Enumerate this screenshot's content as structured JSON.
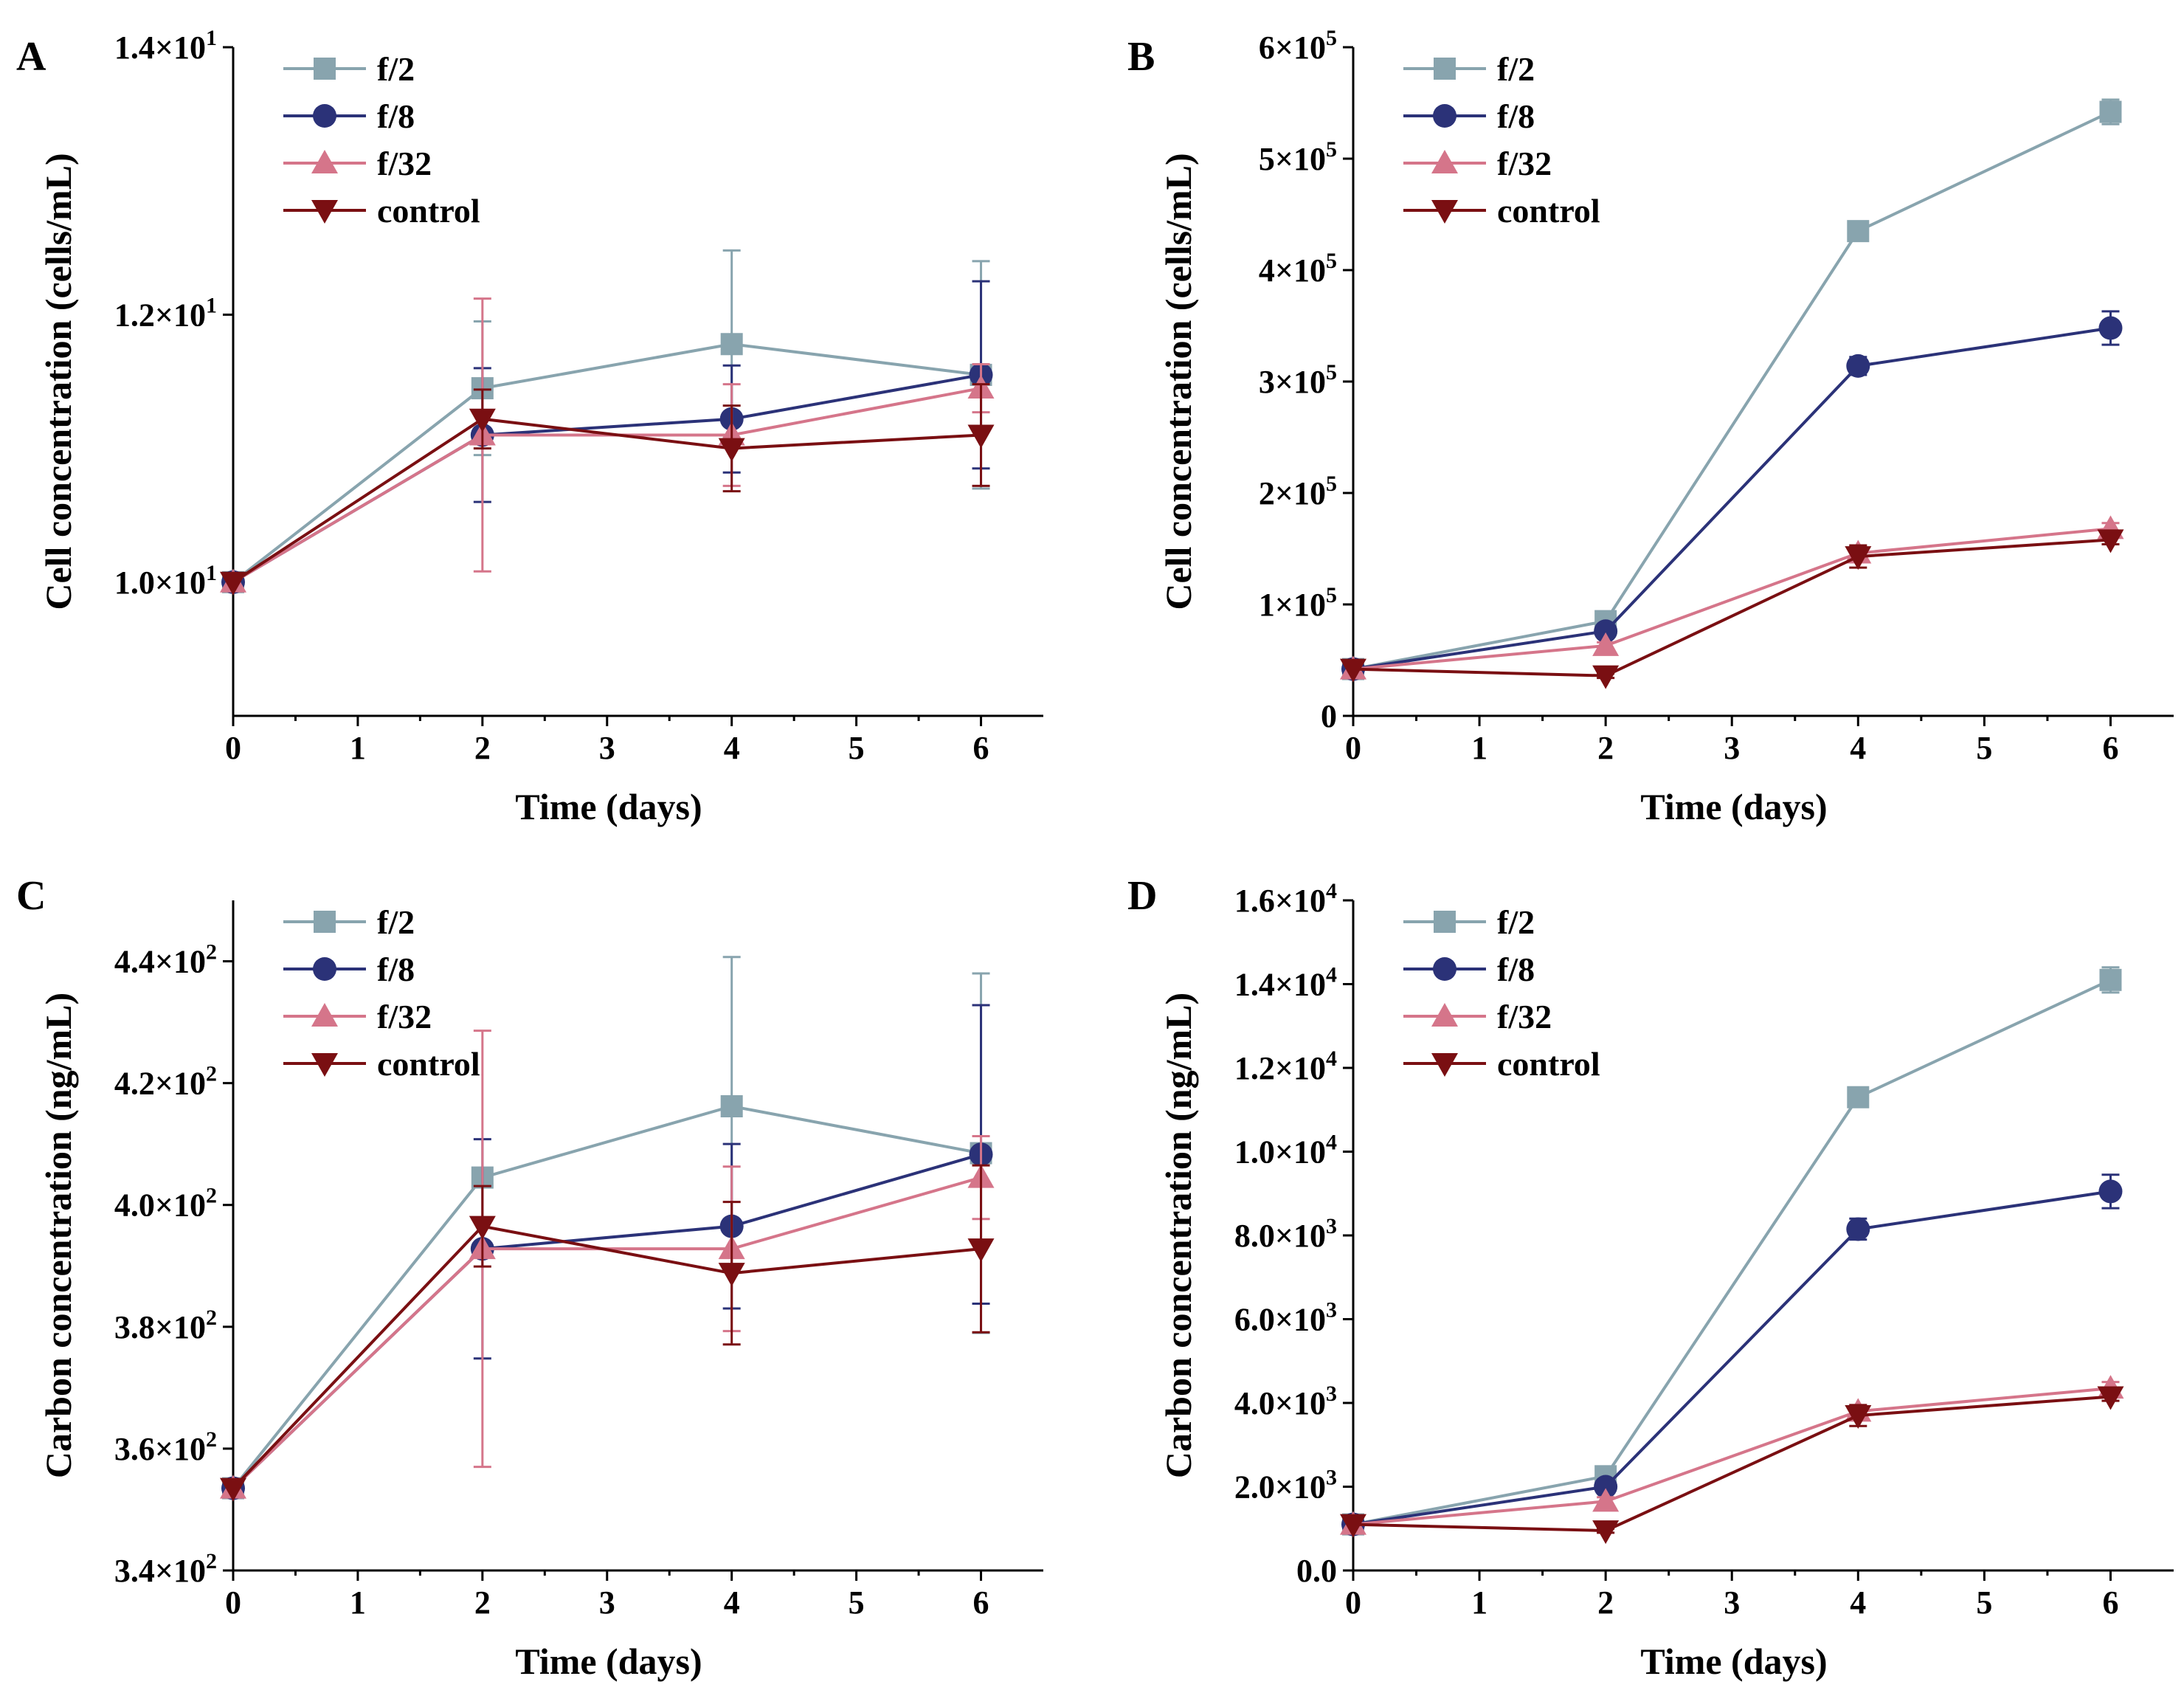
{
  "chart_data": [
    {
      "panel": "A",
      "type": "line",
      "xlabel": "Time (days)",
      "ylabel": "Cell concentration (cells/mL)",
      "xlim": [
        0,
        6.5
      ],
      "ylim": [
        9.0,
        14.0
      ],
      "xticks": [
        0,
        1,
        2,
        3,
        4,
        5,
        6
      ],
      "yticks": [
        {
          "value": 10,
          "mantissa": "1.0×10",
          "exp": "1"
        },
        {
          "value": 12,
          "mantissa": "1.2×10",
          "exp": "1"
        },
        {
          "value": 14,
          "mantissa": "1.4×10",
          "exp": "1"
        }
      ],
      "x": [
        0,
        2,
        4,
        6
      ],
      "series": [
        {
          "name": "f/2",
          "color": "#88a4ae",
          "marker": "square",
          "values": [
            10.0,
            11.45,
            11.78,
            11.55
          ],
          "errors": [
            0,
            0.5,
            0.7,
            0.85
          ]
        },
        {
          "name": "f/8",
          "color": "#2b3278",
          "marker": "circle",
          "values": [
            10.0,
            11.1,
            11.22,
            11.55
          ],
          "errors": [
            0,
            0.5,
            0.4,
            0.7
          ]
        },
        {
          "name": "f/32",
          "color": "#d5758a",
          "marker": "triangle-up",
          "values": [
            10.0,
            11.1,
            11.1,
            11.45
          ],
          "errors": [
            0,
            1.02,
            0.38,
            0.18
          ]
        },
        {
          "name": "control",
          "color": "#7a0f12",
          "marker": "triangle-down",
          "values": [
            10.0,
            11.22,
            11.0,
            11.1
          ],
          "errors": [
            0,
            0.22,
            0.32,
            0.38
          ]
        }
      ]
    },
    {
      "panel": "B",
      "type": "line",
      "xlabel": "Time (days)",
      "ylabel": "Cell concentration (cells/mL)",
      "xlim": [
        0,
        6.5
      ],
      "ylim": [
        0,
        600000
      ],
      "xticks": [
        0,
        1,
        2,
        3,
        4,
        5,
        6
      ],
      "yticks": [
        {
          "value": 0,
          "mantissa": "0",
          "exp": ""
        },
        {
          "value": 100000,
          "mantissa": "1×10",
          "exp": "5"
        },
        {
          "value": 200000,
          "mantissa": "2×10",
          "exp": "5"
        },
        {
          "value": 300000,
          "mantissa": "3×10",
          "exp": "5"
        },
        {
          "value": 400000,
          "mantissa": "4×10",
          "exp": "5"
        },
        {
          "value": 500000,
          "mantissa": "5×10",
          "exp": "5"
        },
        {
          "value": 600000,
          "mantissa": "6×10",
          "exp": "5"
        }
      ],
      "x": [
        0,
        2,
        4,
        6
      ],
      "series": [
        {
          "name": "f/2",
          "color": "#88a4ae",
          "marker": "square",
          "values": [
            42000,
            85000,
            435000,
            542000
          ],
          "errors": [
            0,
            4000,
            3000,
            11000
          ]
        },
        {
          "name": "f/8",
          "color": "#2b3278",
          "marker": "circle",
          "values": [
            42000,
            76000,
            314000,
            348000
          ],
          "errors": [
            0,
            3000,
            8000,
            15000
          ]
        },
        {
          "name": "f/32",
          "color": "#d5758a",
          "marker": "triangle-up",
          "values": [
            42000,
            63000,
            146000,
            168000
          ],
          "errors": [
            0,
            3000,
            6000,
            5000
          ]
        },
        {
          "name": "control",
          "color": "#7a0f12",
          "marker": "triangle-down",
          "values": [
            42000,
            36000,
            143000,
            158000
          ],
          "errors": [
            0,
            2000,
            10000,
            4000
          ]
        }
      ]
    },
    {
      "panel": "C",
      "type": "line",
      "xlabel": "Time (days)",
      "ylabel": "Carbon concentration (ng/mL)",
      "xlim": [
        0,
        6.5
      ],
      "ylim": [
        340,
        450
      ],
      "xticks": [
        0,
        1,
        2,
        3,
        4,
        5,
        6
      ],
      "yticks": [
        {
          "value": 340,
          "mantissa": "3.4×10",
          "exp": "2"
        },
        {
          "value": 360,
          "mantissa": "3.6×10",
          "exp": "2"
        },
        {
          "value": 380,
          "mantissa": "3.8×10",
          "exp": "2"
        },
        {
          "value": 400,
          "mantissa": "4.0×10",
          "exp": "2"
        },
        {
          "value": 420,
          "mantissa": "4.2×10",
          "exp": "2"
        },
        {
          "value": 440,
          "mantissa": "4.4×10",
          "exp": "2"
        }
      ],
      "x": [
        0,
        2,
        4,
        6
      ],
      "series": [
        {
          "name": "f/2",
          "color": "#88a4ae",
          "marker": "square",
          "values": [
            353.5,
            404.5,
            416.2,
            408.5
          ],
          "errors": [
            0,
            0.5,
            24.5,
            29.5
          ]
        },
        {
          "name": "f/8",
          "color": "#2b3278",
          "marker": "circle",
          "values": [
            353.5,
            392.8,
            396.5,
            408.3
          ],
          "errors": [
            0,
            18.0,
            13.5,
            24.5
          ]
        },
        {
          "name": "f/32",
          "color": "#d5758a",
          "marker": "triangle-up",
          "values": [
            353.5,
            392.8,
            392.8,
            404.5
          ],
          "errors": [
            0,
            35.8,
            13.5,
            6.8
          ]
        },
        {
          "name": "control",
          "color": "#7a0f12",
          "marker": "triangle-down",
          "values": [
            353.5,
            396.5,
            388.8,
            392.8
          ],
          "errors": [
            0,
            6.6,
            11.7,
            13.7
          ]
        }
      ]
    },
    {
      "panel": "D",
      "type": "line",
      "xlabel": "Time (days)",
      "ylabel": "Carbon concentration (ng/mL)",
      "xlim": [
        0,
        6.5
      ],
      "ylim": [
        0,
        16000
      ],
      "xticks": [
        0,
        1,
        2,
        3,
        4,
        5,
        6
      ],
      "yticks": [
        {
          "value": 0,
          "mantissa": "0.0",
          "exp": ""
        },
        {
          "value": 2000,
          "mantissa": "2.0×10",
          "exp": "3"
        },
        {
          "value": 4000,
          "mantissa": "4.0×10",
          "exp": "3"
        },
        {
          "value": 6000,
          "mantissa": "6.0×10",
          "exp": "3"
        },
        {
          "value": 8000,
          "mantissa": "8.0×10",
          "exp": "3"
        },
        {
          "value": 10000,
          "mantissa": "1.0×10",
          "exp": "4"
        },
        {
          "value": 12000,
          "mantissa": "1.2×10",
          "exp": "4"
        },
        {
          "value": 14000,
          "mantissa": "1.4×10",
          "exp": "4"
        },
        {
          "value": 16000,
          "mantissa": "1.6×10",
          "exp": "4"
        }
      ],
      "x": [
        0,
        2,
        4,
        6
      ],
      "series": [
        {
          "name": "f/2",
          "color": "#88a4ae",
          "marker": "square",
          "values": [
            1100,
            2250,
            11300,
            14100
          ],
          "errors": [
            0,
            100,
            100,
            300
          ]
        },
        {
          "name": "f/8",
          "color": "#2b3278",
          "marker": "circle",
          "values": [
            1100,
            2000,
            8150,
            9050
          ],
          "errors": [
            0,
            100,
            250,
            400
          ]
        },
        {
          "name": "f/32",
          "color": "#d5758a",
          "marker": "triangle-up",
          "values": [
            1100,
            1650,
            3800,
            4350
          ],
          "errors": [
            0,
            100,
            150,
            150
          ]
        },
        {
          "name": "control",
          "color": "#7a0f12",
          "marker": "triangle-down",
          "values": [
            1100,
            950,
            3700,
            4150
          ],
          "errors": [
            0,
            50,
            250,
            100
          ]
        }
      ]
    }
  ]
}
